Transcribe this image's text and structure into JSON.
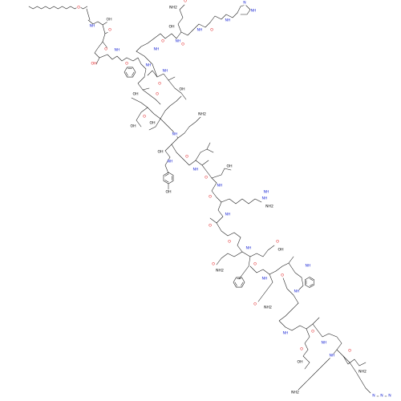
{
  "diagram": {
    "type": "skeletal-structural-formula",
    "palette": {
      "background": "#ffffff",
      "bond": "#1a1a1a",
      "oxygen": "#e0191c",
      "nitrogen": "#1f2bd6",
      "carbon": "#1a1a1a"
    },
    "atom_labels": {
      "oxygen": "O",
      "nitrogen": "N",
      "amine_nh": "NH",
      "amine_nh2": "NH2",
      "hydroxyl": "OH",
      "imidazole_n": "N",
      "imidazole_nh": "NH"
    }
  }
}
